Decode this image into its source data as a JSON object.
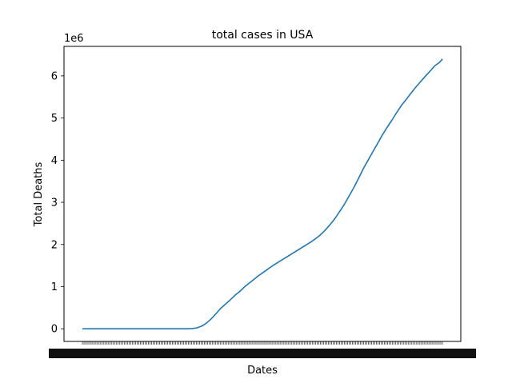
{
  "chart_data": {
    "type": "line",
    "title": "total cases in USA",
    "xlabel": "Dates",
    "ylabel": "Total Deaths",
    "y_offset_label": "1e6",
    "ylim": [
      -300000,
      6700000
    ],
    "x_tick_labels_note": "dense overlapping date tick labels (illegible)",
    "y_ticks": [
      {
        "value": 0,
        "label": "0"
      },
      {
        "value": 1000000,
        "label": "1"
      },
      {
        "value": 2000000,
        "label": "2"
      },
      {
        "value": 3000000,
        "label": "3"
      },
      {
        "value": 4000000,
        "label": "4"
      },
      {
        "value": 5000000,
        "label": "5"
      },
      {
        "value": 6000000,
        "label": "6"
      }
    ],
    "x_tick_count": 225,
    "grid": false,
    "series": [
      {
        "color": "#1f77b4",
        "points": [
          [
            0,
            0
          ],
          [
            20,
            0
          ],
          [
            40,
            0
          ],
          [
            60,
            0
          ],
          [
            80,
            0
          ],
          [
            90,
            0
          ],
          [
            100,
            0
          ],
          [
            110,
            0
          ],
          [
            115,
            5000
          ],
          [
            120,
            20000
          ],
          [
            125,
            60000
          ],
          [
            130,
            130000
          ],
          [
            135,
            230000
          ],
          [
            140,
            350000
          ],
          [
            145,
            480000
          ],
          [
            150,
            580000
          ],
          [
            155,
            680000
          ],
          [
            160,
            790000
          ],
          [
            165,
            880000
          ],
          [
            170,
            990000
          ],
          [
            175,
            1080000
          ],
          [
            180,
            1170000
          ],
          [
            185,
            1260000
          ],
          [
            190,
            1340000
          ],
          [
            195,
            1420000
          ],
          [
            200,
            1500000
          ],
          [
            205,
            1570000
          ],
          [
            210,
            1640000
          ],
          [
            215,
            1710000
          ],
          [
            220,
            1780000
          ],
          [
            225,
            1850000
          ],
          [
            230,
            1920000
          ],
          [
            235,
            1990000
          ],
          [
            240,
            2060000
          ],
          [
            245,
            2140000
          ],
          [
            250,
            2230000
          ],
          [
            255,
            2340000
          ],
          [
            260,
            2470000
          ],
          [
            265,
            2610000
          ],
          [
            270,
            2780000
          ],
          [
            275,
            2950000
          ],
          [
            280,
            3150000
          ],
          [
            285,
            3350000
          ],
          [
            290,
            3570000
          ],
          [
            295,
            3800000
          ],
          [
            300,
            4000000
          ],
          [
            305,
            4200000
          ],
          [
            310,
            4400000
          ],
          [
            315,
            4600000
          ],
          [
            320,
            4780000
          ],
          [
            325,
            4950000
          ],
          [
            330,
            5130000
          ],
          [
            335,
            5300000
          ],
          [
            340,
            5440000
          ],
          [
            345,
            5590000
          ],
          [
            350,
            5730000
          ],
          [
            355,
            5860000
          ],
          [
            360,
            5990000
          ],
          [
            365,
            6110000
          ],
          [
            370,
            6240000
          ],
          [
            375,
            6320000
          ],
          [
            378,
            6400000
          ]
        ]
      }
    ]
  }
}
